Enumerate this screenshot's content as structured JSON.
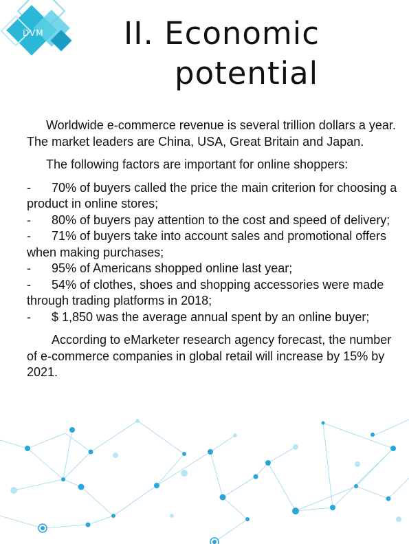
{
  "logo": {
    "text": "DVM",
    "colors": [
      "#2bb8d6",
      "#5fd0e6",
      "#1a9cc4"
    ]
  },
  "title": {
    "line1": "II. Economic",
    "line2": "potential"
  },
  "intro": "Worldwide e-commerce revenue is several trillion dollars a year. The market leaders are China, USA, Great Britain and Japan.",
  "factors_intro": "The following factors are important for online shoppers:",
  "factors": [
    "70% of buyers called the price the main criterion for choosing a product in online stores;",
    "80% of buyers pay attention to the cost and speed of delivery;",
    "71% of buyers take into account sales and promotional offers when making purchases;",
    "95% of Americans shopped online last year;",
    "54% of clothes, shoes and shopping accessories were made through trading platforms in 2018;",
    "$ 1,850 was the average annual spent by an online buyer;"
  ],
  "bullet_marker": "-",
  "closing": "According to eMarketer research agency forecast, the number of e-commerce companies in global retail will increase by 15% by 2021.",
  "decoration": {
    "network_color": "#3bb4e0"
  }
}
